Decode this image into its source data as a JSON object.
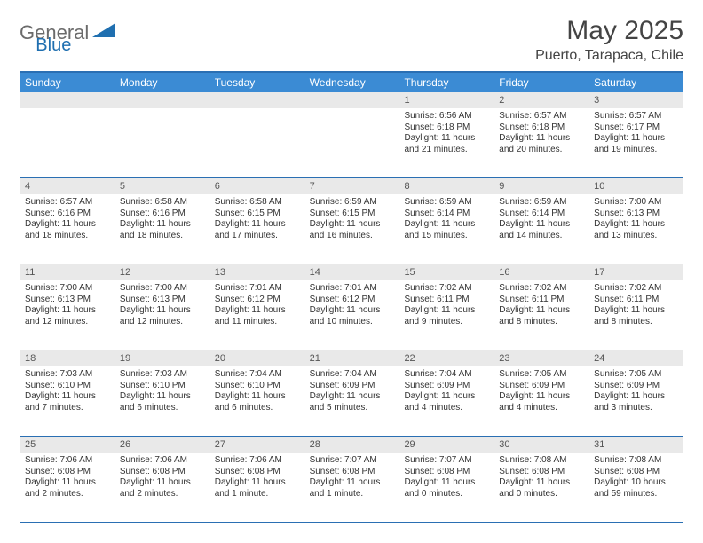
{
  "logo": {
    "text_gray": "General",
    "text_blue": "Blue"
  },
  "title": "May 2025",
  "subtitle": "Puerto, Tarapaca, Chile",
  "colors": {
    "header_bar": "#3b8bd4",
    "header_bar_text": "#ffffff",
    "rule": "#2a6fb3",
    "daynum_bg": "#e9e9e9",
    "body_text": "#333333",
    "title_text": "#444444",
    "logo_gray": "#6b6b6b",
    "logo_blue": "#1f6fb0"
  },
  "dow": [
    "Sunday",
    "Monday",
    "Tuesday",
    "Wednesday",
    "Thursday",
    "Friday",
    "Saturday"
  ],
  "weeks": [
    [
      {
        "n": "",
        "sr": "",
        "ss": "",
        "dl": ""
      },
      {
        "n": "",
        "sr": "",
        "ss": "",
        "dl": ""
      },
      {
        "n": "",
        "sr": "",
        "ss": "",
        "dl": ""
      },
      {
        "n": "",
        "sr": "",
        "ss": "",
        "dl": ""
      },
      {
        "n": "1",
        "sr": "6:56 AM",
        "ss": "6:18 PM",
        "dl": "11 hours and 21 minutes."
      },
      {
        "n": "2",
        "sr": "6:57 AM",
        "ss": "6:18 PM",
        "dl": "11 hours and 20 minutes."
      },
      {
        "n": "3",
        "sr": "6:57 AM",
        "ss": "6:17 PM",
        "dl": "11 hours and 19 minutes."
      }
    ],
    [
      {
        "n": "4",
        "sr": "6:57 AM",
        "ss": "6:16 PM",
        "dl": "11 hours and 18 minutes."
      },
      {
        "n": "5",
        "sr": "6:58 AM",
        "ss": "6:16 PM",
        "dl": "11 hours and 18 minutes."
      },
      {
        "n": "6",
        "sr": "6:58 AM",
        "ss": "6:15 PM",
        "dl": "11 hours and 17 minutes."
      },
      {
        "n": "7",
        "sr": "6:59 AM",
        "ss": "6:15 PM",
        "dl": "11 hours and 16 minutes."
      },
      {
        "n": "8",
        "sr": "6:59 AM",
        "ss": "6:14 PM",
        "dl": "11 hours and 15 minutes."
      },
      {
        "n": "9",
        "sr": "6:59 AM",
        "ss": "6:14 PM",
        "dl": "11 hours and 14 minutes."
      },
      {
        "n": "10",
        "sr": "7:00 AM",
        "ss": "6:13 PM",
        "dl": "11 hours and 13 minutes."
      }
    ],
    [
      {
        "n": "11",
        "sr": "7:00 AM",
        "ss": "6:13 PM",
        "dl": "11 hours and 12 minutes."
      },
      {
        "n": "12",
        "sr": "7:00 AM",
        "ss": "6:13 PM",
        "dl": "11 hours and 12 minutes."
      },
      {
        "n": "13",
        "sr": "7:01 AM",
        "ss": "6:12 PM",
        "dl": "11 hours and 11 minutes."
      },
      {
        "n": "14",
        "sr": "7:01 AM",
        "ss": "6:12 PM",
        "dl": "11 hours and 10 minutes."
      },
      {
        "n": "15",
        "sr": "7:02 AM",
        "ss": "6:11 PM",
        "dl": "11 hours and 9 minutes."
      },
      {
        "n": "16",
        "sr": "7:02 AM",
        "ss": "6:11 PM",
        "dl": "11 hours and 8 minutes."
      },
      {
        "n": "17",
        "sr": "7:02 AM",
        "ss": "6:11 PM",
        "dl": "11 hours and 8 minutes."
      }
    ],
    [
      {
        "n": "18",
        "sr": "7:03 AM",
        "ss": "6:10 PM",
        "dl": "11 hours and 7 minutes."
      },
      {
        "n": "19",
        "sr": "7:03 AM",
        "ss": "6:10 PM",
        "dl": "11 hours and 6 minutes."
      },
      {
        "n": "20",
        "sr": "7:04 AM",
        "ss": "6:10 PM",
        "dl": "11 hours and 6 minutes."
      },
      {
        "n": "21",
        "sr": "7:04 AM",
        "ss": "6:09 PM",
        "dl": "11 hours and 5 minutes."
      },
      {
        "n": "22",
        "sr": "7:04 AM",
        "ss": "6:09 PM",
        "dl": "11 hours and 4 minutes."
      },
      {
        "n": "23",
        "sr": "7:05 AM",
        "ss": "6:09 PM",
        "dl": "11 hours and 4 minutes."
      },
      {
        "n": "24",
        "sr": "7:05 AM",
        "ss": "6:09 PM",
        "dl": "11 hours and 3 minutes."
      }
    ],
    [
      {
        "n": "25",
        "sr": "7:06 AM",
        "ss": "6:08 PM",
        "dl": "11 hours and 2 minutes."
      },
      {
        "n": "26",
        "sr": "7:06 AM",
        "ss": "6:08 PM",
        "dl": "11 hours and 2 minutes."
      },
      {
        "n": "27",
        "sr": "7:06 AM",
        "ss": "6:08 PM",
        "dl": "11 hours and 1 minute."
      },
      {
        "n": "28",
        "sr": "7:07 AM",
        "ss": "6:08 PM",
        "dl": "11 hours and 1 minute."
      },
      {
        "n": "29",
        "sr": "7:07 AM",
        "ss": "6:08 PM",
        "dl": "11 hours and 0 minutes."
      },
      {
        "n": "30",
        "sr": "7:08 AM",
        "ss": "6:08 PM",
        "dl": "11 hours and 0 minutes."
      },
      {
        "n": "31",
        "sr": "7:08 AM",
        "ss": "6:08 PM",
        "dl": "10 hours and 59 minutes."
      }
    ]
  ],
  "labels": {
    "sunrise": "Sunrise:",
    "sunset": "Sunset:",
    "daylight": "Daylight:"
  }
}
